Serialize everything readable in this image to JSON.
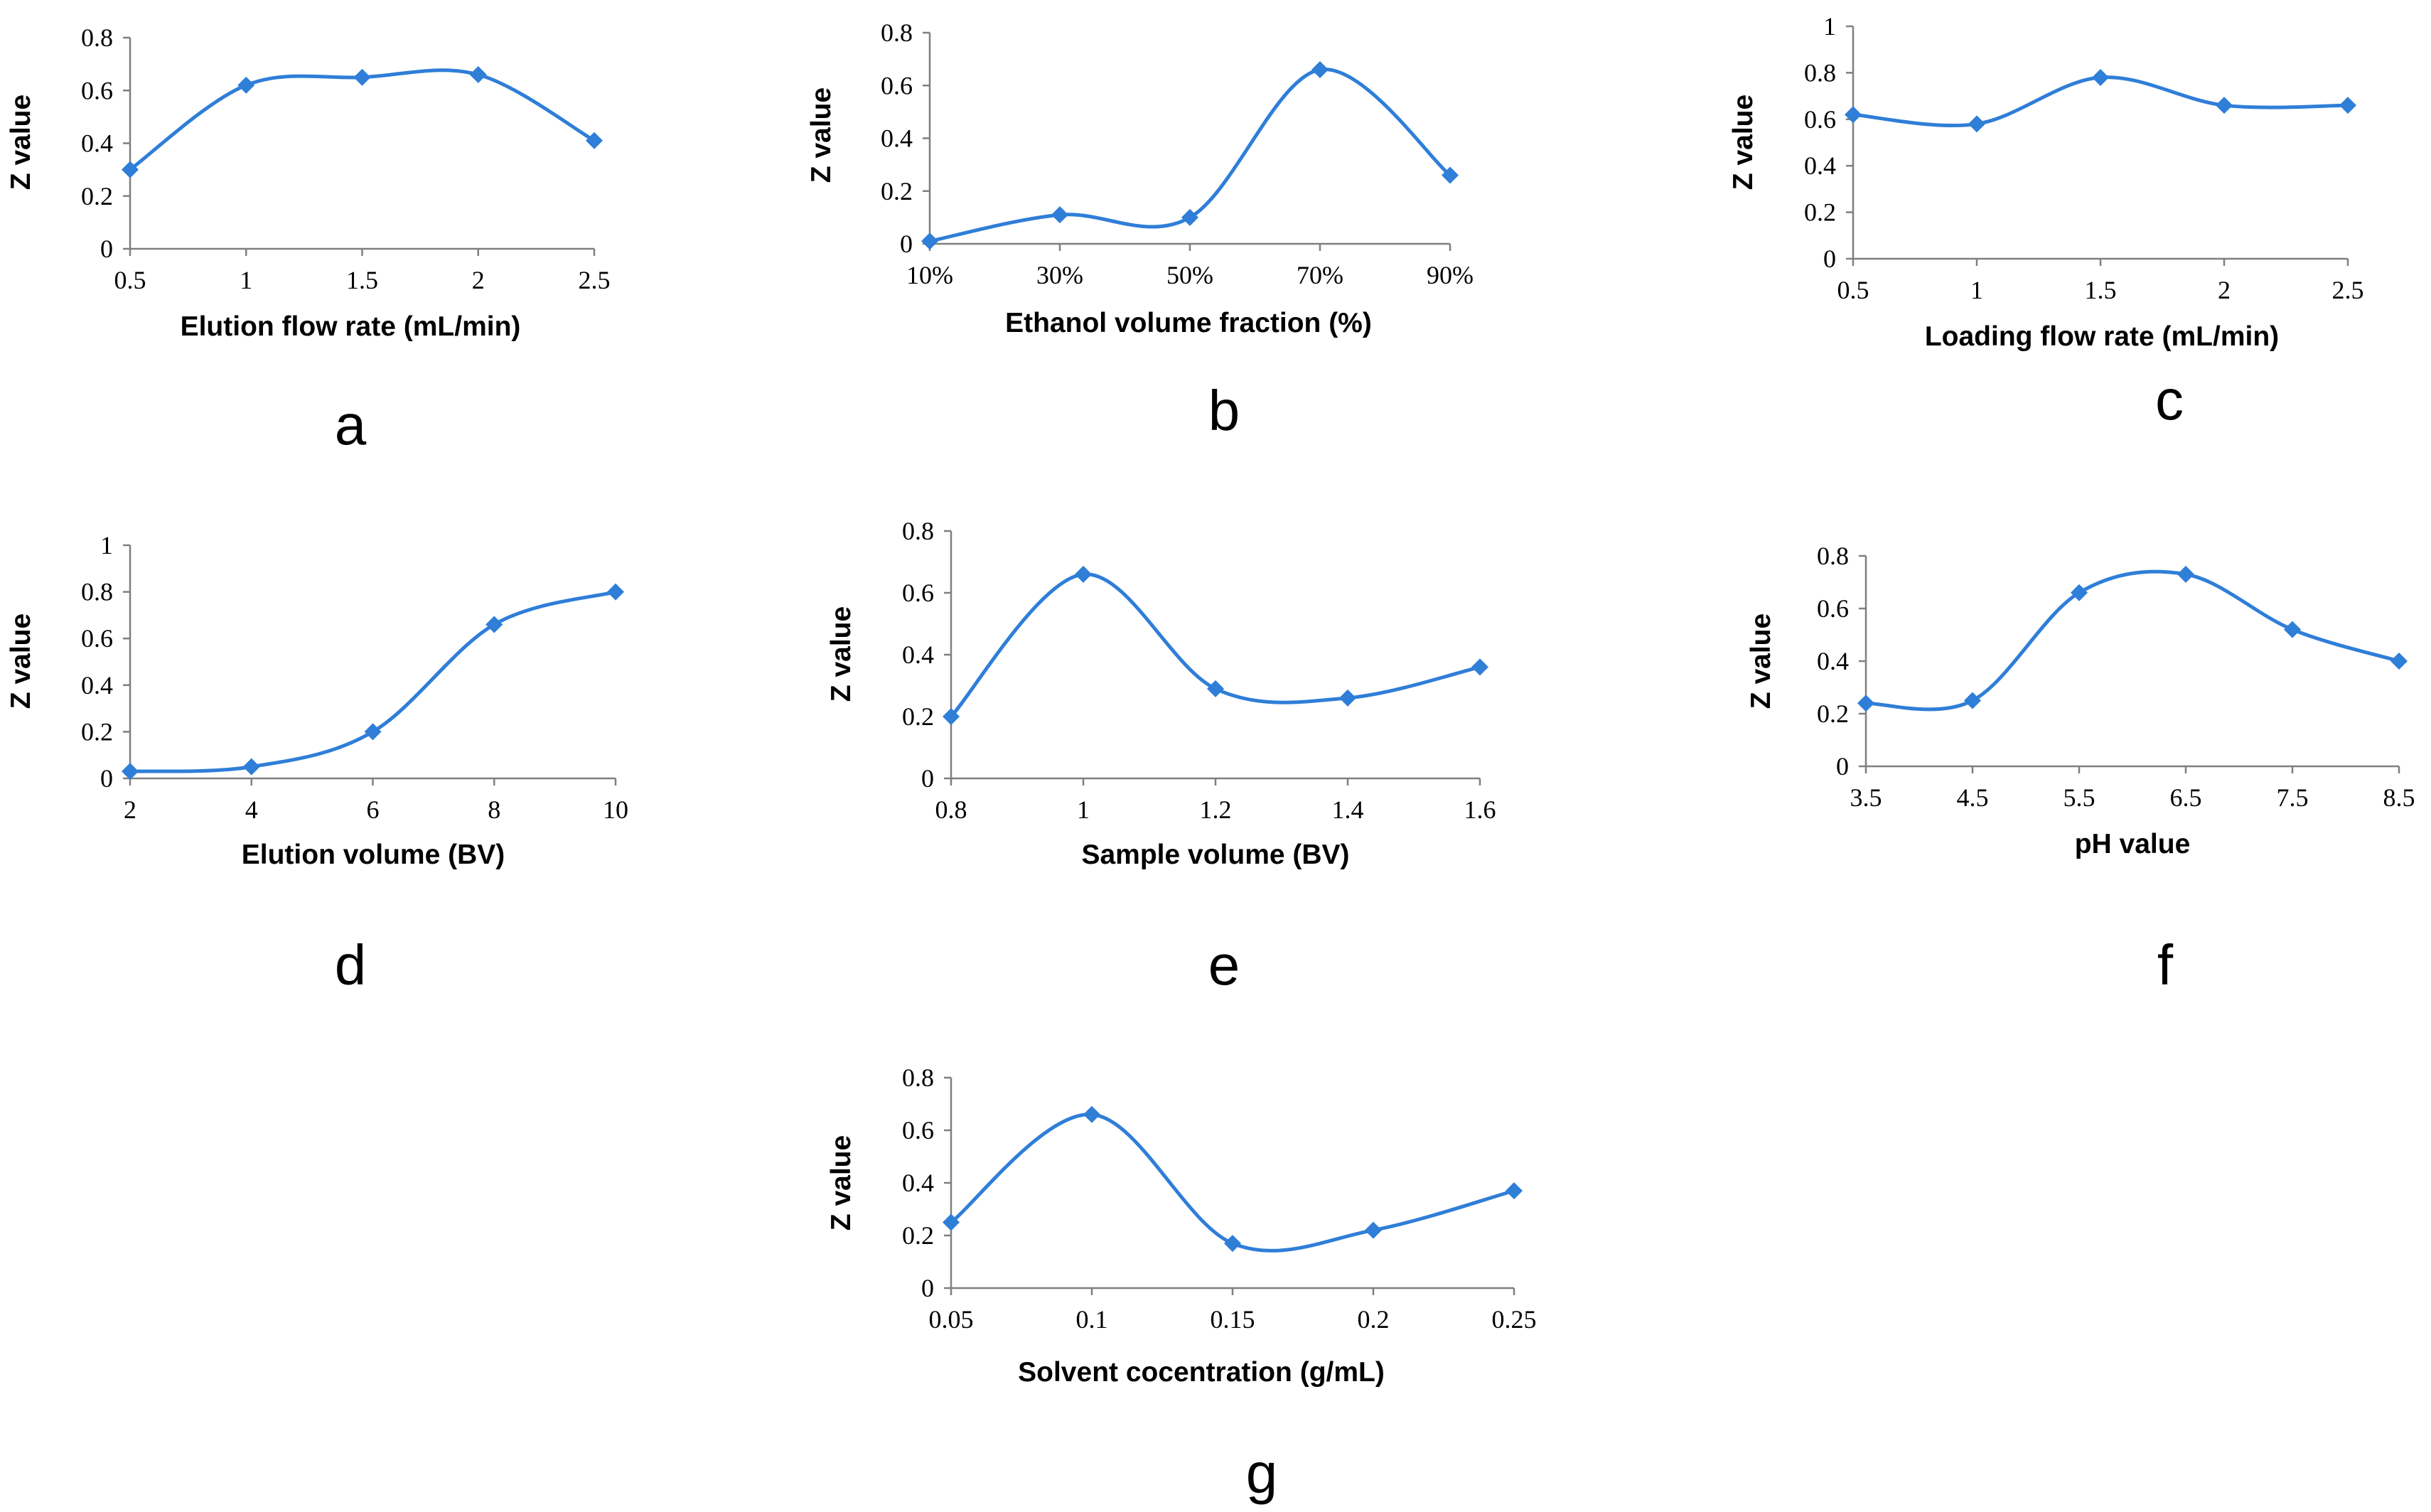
{
  "chart_data": [
    {
      "type": "line",
      "panel_label": "a",
      "xlabel": "Elution flow rate (mL/min)",
      "ylabel": "Z value",
      "x_ticks": [
        "0.5",
        "1",
        "1.5",
        "2",
        "2.5"
      ],
      "y_ticks": [
        "0",
        "0.2",
        "0.4",
        "0.6",
        "0.8"
      ],
      "ylim": [
        0,
        0.8
      ],
      "x": [
        0.5,
        1,
        1.5,
        2,
        2.5
      ],
      "values": [
        0.3,
        0.62,
        0.65,
        0.66,
        0.41
      ],
      "smooth": true,
      "marker": "diamond",
      "color": "#2F7ED8",
      "grid": false
    },
    {
      "type": "line",
      "panel_label": "b",
      "xlabel": "Ethanol volume fraction (%)",
      "ylabel": "Z value",
      "x_ticks": [
        "10%",
        "30%",
        "50%",
        "70%",
        "90%"
      ],
      "y_ticks": [
        "0",
        "0.2",
        "0.4",
        "0.6",
        "0.8"
      ],
      "ylim": [
        0,
        0.8
      ],
      "x": [
        10,
        30,
        50,
        70,
        90
      ],
      "values": [
        0.01,
        0.11,
        0.1,
        0.66,
        0.26
      ],
      "smooth": true,
      "marker": "diamond",
      "color": "#2F7ED8",
      "grid": false
    },
    {
      "type": "line",
      "panel_label": "c",
      "xlabel": "Loading flow rate (mL/min)",
      "ylabel": "Z value",
      "x_ticks": [
        "0.5",
        "1",
        "1.5",
        "2",
        "2.5"
      ],
      "y_ticks": [
        "0",
        "0.2",
        "0.4",
        "0.6",
        "0.8",
        "1"
      ],
      "ylim": [
        0,
        1
      ],
      "x": [
        0.5,
        1,
        1.5,
        2,
        2.5
      ],
      "values": [
        0.62,
        0.58,
        0.78,
        0.66,
        0.66
      ],
      "smooth": true,
      "marker": "diamond",
      "color": "#2F7ED8",
      "grid": false
    },
    {
      "type": "line",
      "panel_label": "d",
      "xlabel": "Elution volume (BV)",
      "ylabel": "Z value",
      "x_ticks": [
        "2",
        "4",
        "6",
        "8",
        "10"
      ],
      "y_ticks": [
        "0",
        "0.2",
        "0.4",
        "0.6",
        "0.8",
        "1"
      ],
      "ylim": [
        0,
        1
      ],
      "x": [
        2,
        4,
        6,
        8,
        10
      ],
      "values": [
        0.03,
        0.05,
        0.2,
        0.66,
        0.8
      ],
      "smooth": true,
      "marker": "diamond",
      "color": "#2F7ED8",
      "grid": false
    },
    {
      "type": "line",
      "panel_label": "e",
      "xlabel": "Sample volume (BV)",
      "ylabel": "Z value",
      "x_ticks": [
        "0.8",
        "1",
        "1.2",
        "1.4",
        "1.6"
      ],
      "y_ticks": [
        "0",
        "0.2",
        "0.4",
        "0.6",
        "0.8"
      ],
      "ylim": [
        0,
        0.8
      ],
      "x": [
        0.8,
        1,
        1.2,
        1.4,
        1.6
      ],
      "values": [
        0.2,
        0.66,
        0.29,
        0.26,
        0.36
      ],
      "smooth": true,
      "marker": "diamond",
      "color": "#2F7ED8",
      "grid": false
    },
    {
      "type": "line",
      "panel_label": "f",
      "xlabel": "pH value",
      "ylabel": "Z value",
      "x_ticks": [
        "3.5",
        "4.5",
        "5.5",
        "6.5",
        "7.5",
        "8.5"
      ],
      "y_ticks": [
        "0",
        "0.2",
        "0.4",
        "0.6",
        "0.8"
      ],
      "ylim": [
        0,
        0.8
      ],
      "x": [
        3.5,
        4.5,
        5.5,
        6.5,
        7.5,
        8.5
      ],
      "values": [
        0.24,
        0.25,
        0.66,
        0.73,
        0.52,
        0.4
      ],
      "smooth": true,
      "marker": "diamond",
      "color": "#2F7ED8",
      "grid": false
    },
    {
      "type": "line",
      "panel_label": "g",
      "xlabel": "Solvent cocentration (g/mL)",
      "ylabel": "Z value",
      "x_ticks": [
        "0.05",
        "0.1",
        "0.15",
        "0.2",
        "0.25"
      ],
      "y_ticks": [
        "0",
        "0.2",
        "0.4",
        "0.6",
        "0.8"
      ],
      "ylim": [
        0,
        0.8
      ],
      "x": [
        0.05,
        0.1,
        0.15,
        0.2,
        0.25
      ],
      "values": [
        0.25,
        0.66,
        0.17,
        0.22,
        0.37
      ],
      "smooth": true,
      "marker": "diamond",
      "color": "#2F7ED8",
      "grid": false
    }
  ]
}
